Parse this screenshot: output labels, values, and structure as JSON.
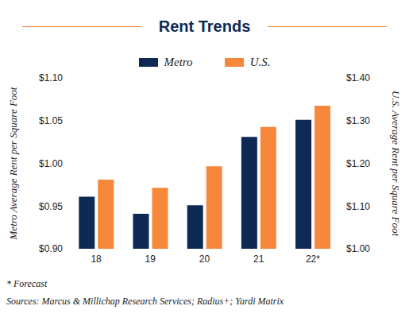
{
  "chart_data": {
    "type": "bar",
    "title": "Rent Trends",
    "categories": [
      "18",
      "19",
      "20",
      "21",
      "22*"
    ],
    "series": [
      {
        "name": "Metro",
        "color": "#0e2a54",
        "values": [
          0.961,
          0.941,
          0.951,
          1.031,
          1.051
        ]
      },
      {
        "name": "U.S.",
        "color": "#f7883b",
        "axis": "y2",
        "values": [
          1.162,
          1.143,
          1.193,
          1.285,
          1.335
        ]
      }
    ],
    "ylabel": "Metro Average Rent per Square Foot",
    "y2label": "U.S. Average Rent per Square Foot",
    "ylim": [
      0.9,
      1.1
    ],
    "yticks": [
      {
        "value": 0.9,
        "label": "$0.90"
      },
      {
        "value": 0.95,
        "label": "$0.95"
      },
      {
        "value": 1.0,
        "label": "$1.00"
      },
      {
        "value": 1.05,
        "label": "$1.05"
      },
      {
        "value": 1.1,
        "label": "$1.10"
      }
    ],
    "y2lim": [
      1.0,
      1.4
    ],
    "y2ticks": [
      {
        "value": 1.0,
        "label": "$1.00"
      },
      {
        "value": 1.1,
        "label": "$1.10"
      },
      {
        "value": 1.2,
        "label": "$1.20"
      },
      {
        "value": 1.3,
        "label": "$1.30"
      },
      {
        "value": 1.4,
        "label": "$1.40"
      }
    ],
    "annotations": [
      "* Forecast",
      "Sources: Marcus & Millichap Research Services; Radius+; Yardi Matrix"
    ],
    "grid": false
  }
}
